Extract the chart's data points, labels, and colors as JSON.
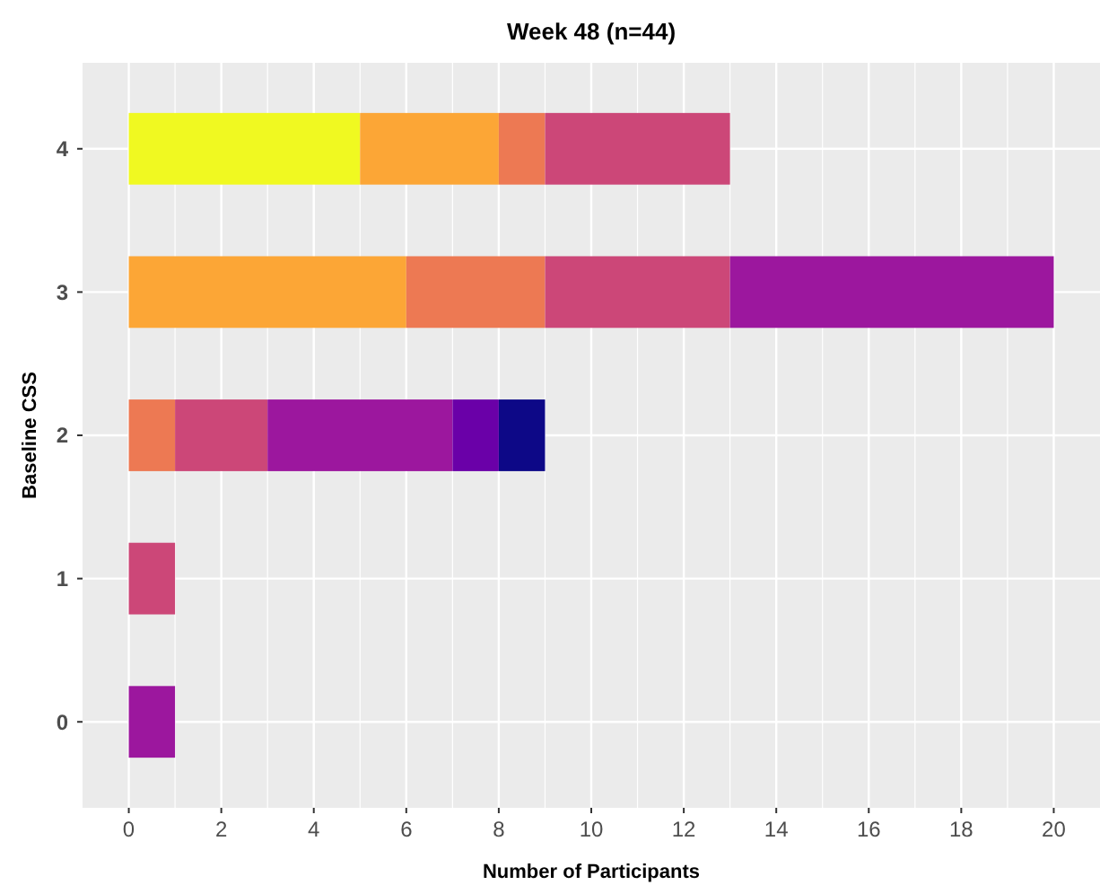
{
  "chart_data": {
    "type": "bar",
    "orientation": "horizontal",
    "stacked": true,
    "title": "Week 48 (n=44)",
    "xlabel": "Number of Participants",
    "ylabel": "Baseline CSS",
    "categories": [
      "4",
      "3",
      "2",
      "1",
      "0"
    ],
    "series": [
      {
        "color": "#f0f921",
        "values": [
          5,
          0,
          0,
          0,
          0
        ]
      },
      {
        "color": "#fca636",
        "values": [
          3,
          6,
          0,
          0,
          0
        ]
      },
      {
        "color": "#ed7953",
        "values": [
          1,
          3,
          1,
          0,
          0
        ]
      },
      {
        "color": "#cc4778",
        "values": [
          4,
          4,
          2,
          1,
          0
        ]
      },
      {
        "color": "#9c179e",
        "values": [
          0,
          7,
          4,
          0,
          1
        ]
      },
      {
        "color": "#6a00a8",
        "values": [
          0,
          0,
          1,
          0,
          0
        ]
      },
      {
        "color": "#0d0887",
        "values": [
          0,
          0,
          1,
          0,
          0
        ]
      }
    ],
    "xlim": [
      -1,
      21
    ],
    "xticks": [
      0,
      2,
      4,
      6,
      8,
      10,
      12,
      14,
      16,
      18,
      20
    ],
    "grid": true
  }
}
